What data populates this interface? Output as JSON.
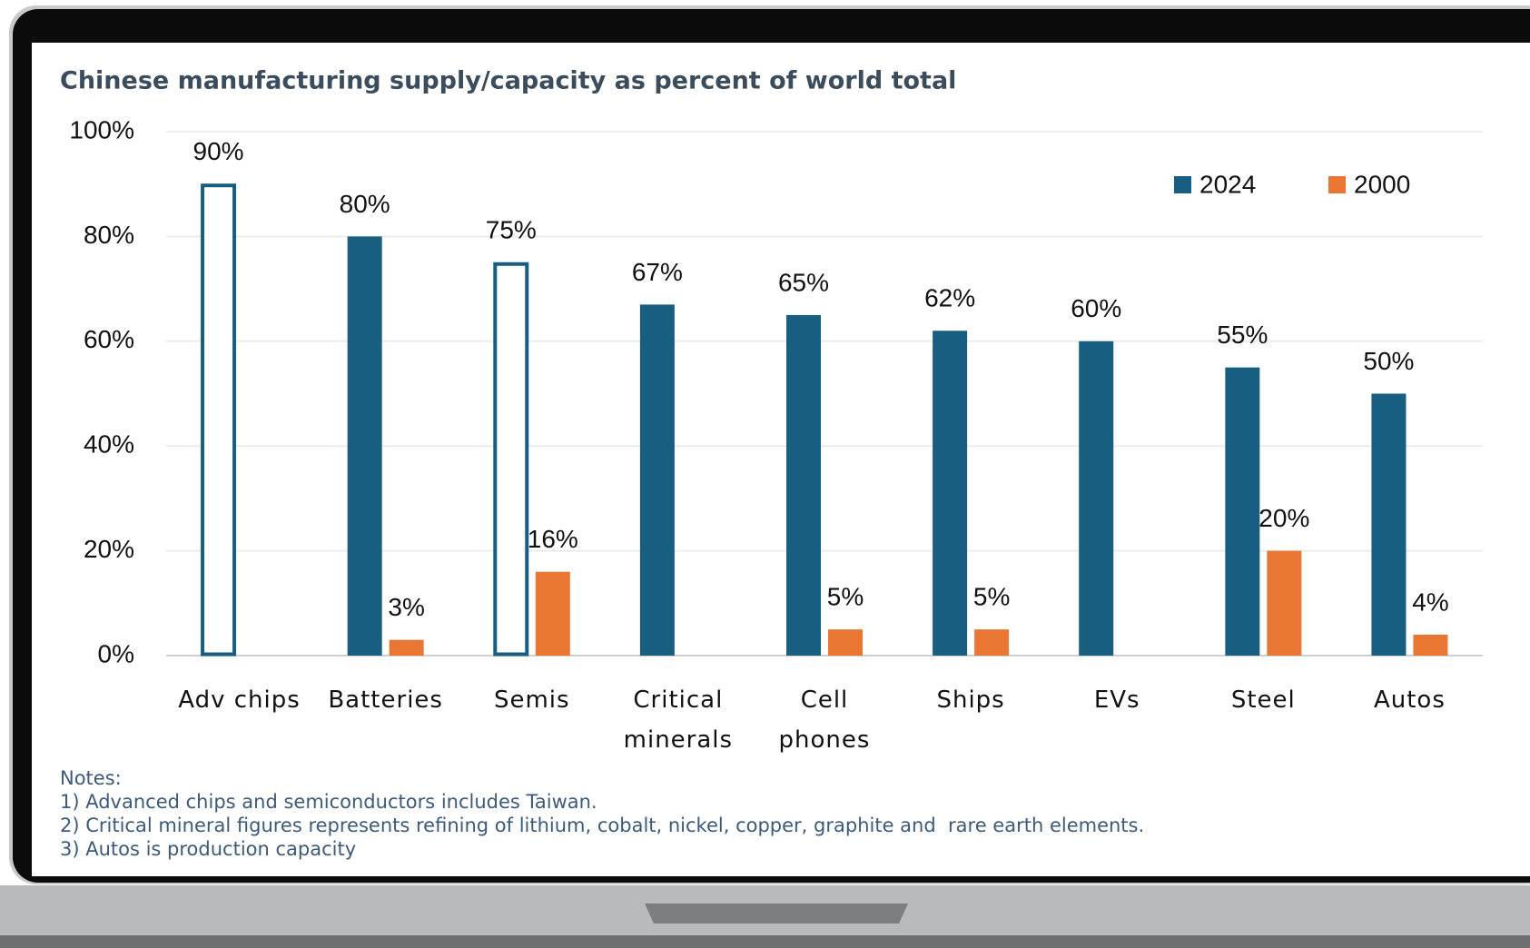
{
  "chart_data": {
    "type": "bar",
    "title": "Chinese manufacturing supply/capacity as percent of world total",
    "categories": [
      "Adv chips",
      "Batteries",
      "Semis",
      "Critical minerals",
      "Cell phones",
      "Ships",
      "EVs",
      "Steel",
      "Autos"
    ],
    "series": [
      {
        "name": "2024",
        "color": "#185e80",
        "values": [
          90,
          80,
          75,
          67,
          65,
          62,
          60,
          55,
          50
        ],
        "value_labels": [
          "90%",
          "80%",
          "75%",
          "67%",
          "65%",
          "62%",
          "60%",
          "55%",
          "50%"
        ],
        "outline": [
          true,
          false,
          true,
          false,
          false,
          false,
          false,
          false,
          false
        ]
      },
      {
        "name": "2000",
        "color": "#ea7634",
        "values": [
          null,
          3,
          16,
          null,
          5,
          5,
          null,
          20,
          4
        ],
        "value_labels": [
          null,
          "3%",
          "16%",
          null,
          "5%",
          "5%",
          null,
          "20%",
          "4%"
        ]
      }
    ],
    "ylim": [
      0,
      100
    ],
    "yticks": [
      {
        "value": 0,
        "label": "0%"
      },
      {
        "value": 20,
        "label": "20%"
      },
      {
        "value": 40,
        "label": "40%"
      },
      {
        "value": 60,
        "label": "60%"
      },
      {
        "value": 80,
        "label": "80%"
      },
      {
        "value": 100,
        "label": "100%"
      }
    ],
    "grid": true,
    "legend": "top-right",
    "notes": [
      "Notes:",
      "1) Advanced chips and semiconductors includes Taiwan.",
      "2) Critical mineral figures represents refining of lithium, cobalt, nickel, copper, graphite and  rare earth elements.",
      "3) Autos is production capacity"
    ]
  }
}
